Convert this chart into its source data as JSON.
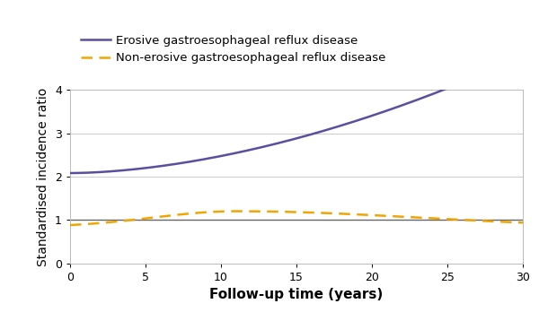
{
  "erosive_color": "#5b4ea0",
  "nonerosive_color": "#f0a500",
  "reference_color": "#666666",
  "xlim": [
    0,
    30
  ],
  "ylim": [
    0,
    4
  ],
  "xticks": [
    0,
    5,
    10,
    15,
    20,
    25,
    30
  ],
  "yticks": [
    0,
    1,
    2,
    3,
    4
  ],
  "xlabel": "Follow-up time (years)",
  "ylabel": "Standardised incidence ratio",
  "legend_erosive": "Erosive gastroesophageal reflux disease",
  "legend_nonerosive": "Non-erosive gastroesophageal reflux disease",
  "bg_color": "#ffffff",
  "grid_color": "#cccccc",
  "xlabel_fontsize": 11,
  "ylabel_fontsize": 10,
  "tick_fontsize": 9,
  "legend_fontsize": 9.5,
  "erosive_linewidth": 1.8,
  "nonerosive_linewidth": 1.8,
  "reference_linewidth": 1.0
}
